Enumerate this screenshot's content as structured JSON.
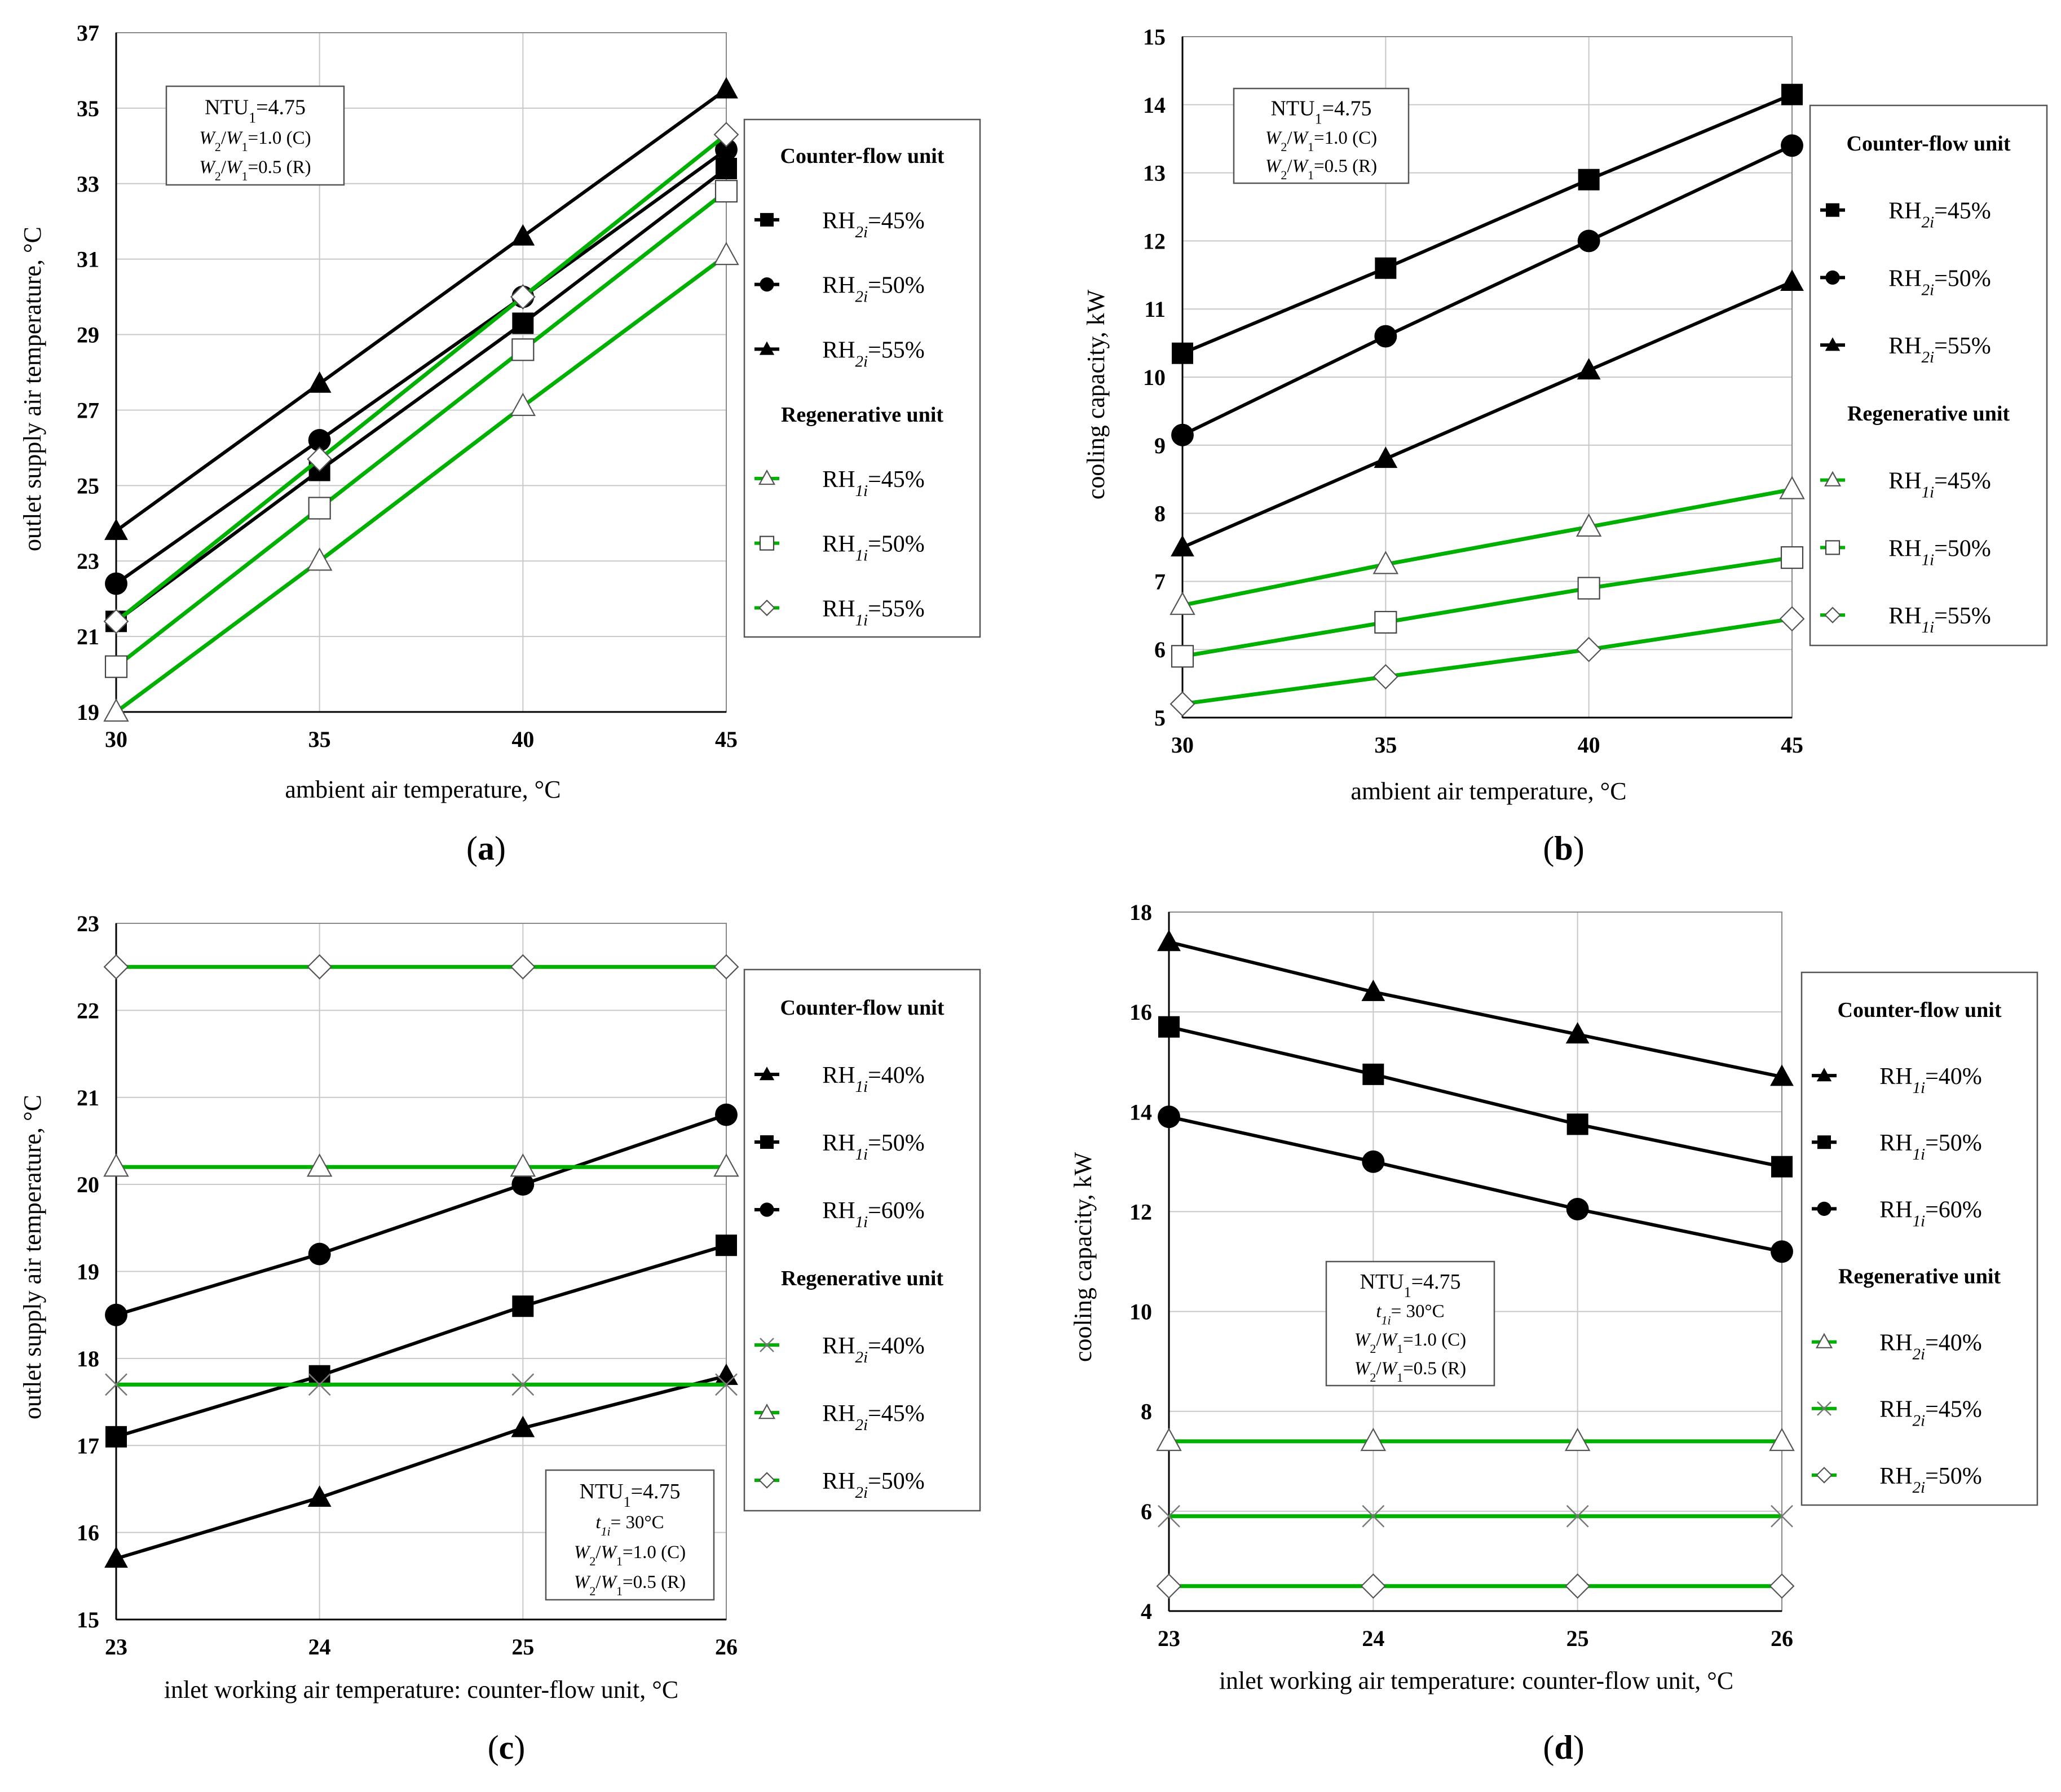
{
  "chart_data": [
    {
      "type": "line",
      "panel_label": "(a)",
      "xlabel": "ambient air temperature, °C",
      "ylabel": "outlet supply  air temperature,  °C",
      "x": [
        30,
        35,
        40,
        45
      ],
      "xlim": [
        30,
        45
      ],
      "ylim": [
        19,
        37
      ],
      "xticks": [
        30,
        35,
        40,
        45
      ],
      "yticks": [
        19,
        21,
        23,
        25,
        27,
        29,
        31,
        33,
        35,
        37
      ],
      "grid": true,
      "legend_position": "right",
      "legend_groups": [
        "Counter-flow unit",
        "Regenerative unit"
      ],
      "params_box": [
        "NTU₁=4.75",
        "W₂/W₁=1.0 (C)",
        "W₂/W₁=0.5 (R)"
      ],
      "series": [
        {
          "name": "RH₂ᵢ=45%",
          "group": "Counter-flow unit",
          "color": "#000000",
          "marker": "square-filled",
          "values": [
            21.4,
            25.4,
            29.3,
            33.4
          ]
        },
        {
          "name": "RH₂ᵢ=50%",
          "group": "Counter-flow unit",
          "color": "#000000",
          "marker": "circle-filled",
          "values": [
            22.4,
            26.2,
            30.0,
            33.9
          ]
        },
        {
          "name": "RH₂ᵢ=55%",
          "group": "Counter-flow unit",
          "color": "#000000",
          "marker": "triangle-filled",
          "values": [
            23.8,
            27.7,
            31.6,
            35.5
          ]
        },
        {
          "name": "RH₁ᵢ=45%",
          "group": "Regenerative unit",
          "color": "#00b000",
          "marker": "triangle-open",
          "values": [
            19.0,
            23.0,
            27.1,
            31.1
          ]
        },
        {
          "name": "RH₁ᵢ=50%",
          "group": "Regenerative unit",
          "color": "#00b000",
          "marker": "square-open",
          "values": [
            20.2,
            24.4,
            28.6,
            32.8
          ]
        },
        {
          "name": "RH₁ᵢ=55%",
          "group": "Regenerative unit",
          "color": "#00b000",
          "marker": "diamond-open",
          "values": [
            21.4,
            25.7,
            30.0,
            34.3
          ]
        }
      ]
    },
    {
      "type": "line",
      "panel_label": "(b)",
      "xlabel": "ambient air temperature, °C",
      "ylabel": "cooling  capacity,  kW",
      "x": [
        30,
        35,
        40,
        45
      ],
      "xlim": [
        30,
        45
      ],
      "ylim": [
        5,
        15
      ],
      "xticks": [
        30,
        35,
        40,
        45
      ],
      "yticks": [
        5,
        6,
        7,
        8,
        9,
        10,
        11,
        12,
        13,
        14,
        15
      ],
      "grid": true,
      "legend_position": "right",
      "legend_groups": [
        "Counter-flow unit",
        "Regenerative unit"
      ],
      "params_box": [
        "NTU₁=4.75",
        "W₂/W₁=1.0 (C)",
        "W₂/W₁=0.5 (R)"
      ],
      "series": [
        {
          "name": "RH₂ᵢ=45%",
          "group": "Counter-flow unit",
          "color": "#000000",
          "marker": "square-filled",
          "values": [
            10.35,
            11.6,
            12.9,
            14.15
          ]
        },
        {
          "name": "RH₂ᵢ=50%",
          "group": "Counter-flow unit",
          "color": "#000000",
          "marker": "circle-filled",
          "values": [
            9.15,
            10.6,
            12.0,
            13.4
          ]
        },
        {
          "name": "RH₂ᵢ=55%",
          "group": "Counter-flow unit",
          "color": "#000000",
          "marker": "triangle-filled",
          "values": [
            7.5,
            8.8,
            10.1,
            11.4
          ]
        },
        {
          "name": "RH₁ᵢ=45%",
          "group": "Regenerative unit",
          "color": "#00b000",
          "marker": "triangle-open",
          "values": [
            6.65,
            7.25,
            7.8,
            8.35
          ]
        },
        {
          "name": "RH₁ᵢ=50%",
          "group": "Regenerative unit",
          "color": "#00b000",
          "marker": "square-open",
          "values": [
            5.9,
            6.4,
            6.9,
            7.35
          ]
        },
        {
          "name": "RH₁ᵢ=55%",
          "group": "Regenerative unit",
          "color": "#00b000",
          "marker": "diamond-open",
          "values": [
            5.2,
            5.6,
            6.0,
            6.45
          ]
        }
      ]
    },
    {
      "type": "line",
      "panel_label": "(c)",
      "xlabel": "inlet working air temperature: counter-flow unit, °C",
      "ylabel": "outlet supply  air temperature,  °C",
      "x": [
        23,
        24,
        25,
        26
      ],
      "xlim": [
        23,
        26
      ],
      "ylim": [
        15,
        23
      ],
      "xticks": [
        23,
        24,
        25,
        26
      ],
      "yticks": [
        15,
        16,
        17,
        18,
        19,
        20,
        21,
        22,
        23
      ],
      "grid": true,
      "legend_position": "right",
      "legend_groups": [
        "Counter-flow unit",
        "Regenerative unit"
      ],
      "params_box": [
        "NTU₁=4.75",
        "t₁ᵢ= 30°C",
        "W₂/W₁=1.0 (C)",
        "W₂/W₁=0.5 (R)"
      ],
      "series": [
        {
          "name": "RH₁ᵢ=40%",
          "group": "Counter-flow unit",
          "color": "#000000",
          "marker": "triangle-filled",
          "values": [
            15.7,
            16.4,
            17.2,
            17.8
          ]
        },
        {
          "name": "RH₁ᵢ=50%",
          "group": "Counter-flow unit",
          "color": "#000000",
          "marker": "square-filled",
          "values": [
            17.1,
            17.8,
            18.6,
            19.3
          ]
        },
        {
          "name": "RH₁ᵢ=60%",
          "group": "Counter-flow unit",
          "color": "#000000",
          "marker": "circle-filled",
          "values": [
            18.5,
            19.2,
            20.0,
            20.8
          ]
        },
        {
          "name": "RH₂ᵢ=40%",
          "group": "Regenerative unit",
          "color": "#00b000",
          "marker": "cross",
          "values": [
            17.7,
            17.7,
            17.7,
            17.7
          ]
        },
        {
          "name": "RH₂ᵢ=45%",
          "group": "Regenerative unit",
          "color": "#00b000",
          "marker": "triangle-open",
          "values": [
            20.2,
            20.2,
            20.2,
            20.2
          ]
        },
        {
          "name": "RH₂ᵢ=50%",
          "group": "Regenerative unit",
          "color": "#00b000",
          "marker": "diamond-open",
          "values": [
            22.5,
            22.5,
            22.5,
            22.5
          ]
        }
      ]
    },
    {
      "type": "line",
      "panel_label": "(d)",
      "xlabel": "inlet working air temperature: counter-flow unit, °C",
      "ylabel": "cooling capacity,  kW",
      "x": [
        23,
        24,
        25,
        26
      ],
      "xlim": [
        23,
        26
      ],
      "ylim": [
        4,
        18
      ],
      "xticks": [
        23,
        24,
        25,
        26
      ],
      "yticks": [
        4,
        6,
        8,
        10,
        12,
        14,
        16,
        18
      ],
      "grid": true,
      "legend_position": "right",
      "legend_groups": [
        "Counter-flow unit",
        "Regenerative unit"
      ],
      "params_box": [
        "NTU₁=4.75",
        "t₁ᵢ= 30°C",
        "W₂/W₁=1.0 (C)",
        "W₂/W₁=0.5 (R)"
      ],
      "series": [
        {
          "name": "RH₁ᵢ=40%",
          "group": "Counter-flow unit",
          "color": "#000000",
          "marker": "triangle-filled",
          "values": [
            17.4,
            16.4,
            15.55,
            14.7
          ]
        },
        {
          "name": "RH₁ᵢ=50%",
          "group": "Counter-flow unit",
          "color": "#000000",
          "marker": "square-filled",
          "values": [
            15.7,
            14.75,
            13.75,
            12.9
          ]
        },
        {
          "name": "RH₁ᵢ=60%",
          "group": "Counter-flow unit",
          "color": "#000000",
          "marker": "circle-filled",
          "values": [
            13.9,
            13.0,
            12.05,
            11.2
          ]
        },
        {
          "name": "RH₂ᵢ=40%",
          "group": "Regenerative unit",
          "color": "#00b000",
          "marker": "triangle-open",
          "values": [
            7.4,
            7.4,
            7.4,
            7.4
          ]
        },
        {
          "name": "RH₂ᵢ=45%",
          "group": "Regenerative unit",
          "color": "#00b000",
          "marker": "cross",
          "values": [
            5.9,
            5.9,
            5.9,
            5.9
          ]
        },
        {
          "name": "RH₂ᵢ=50%",
          "group": "Regenerative unit",
          "color": "#00b000",
          "marker": "diamond-open",
          "values": [
            4.5,
            4.5,
            4.5,
            4.5
          ]
        }
      ]
    }
  ]
}
